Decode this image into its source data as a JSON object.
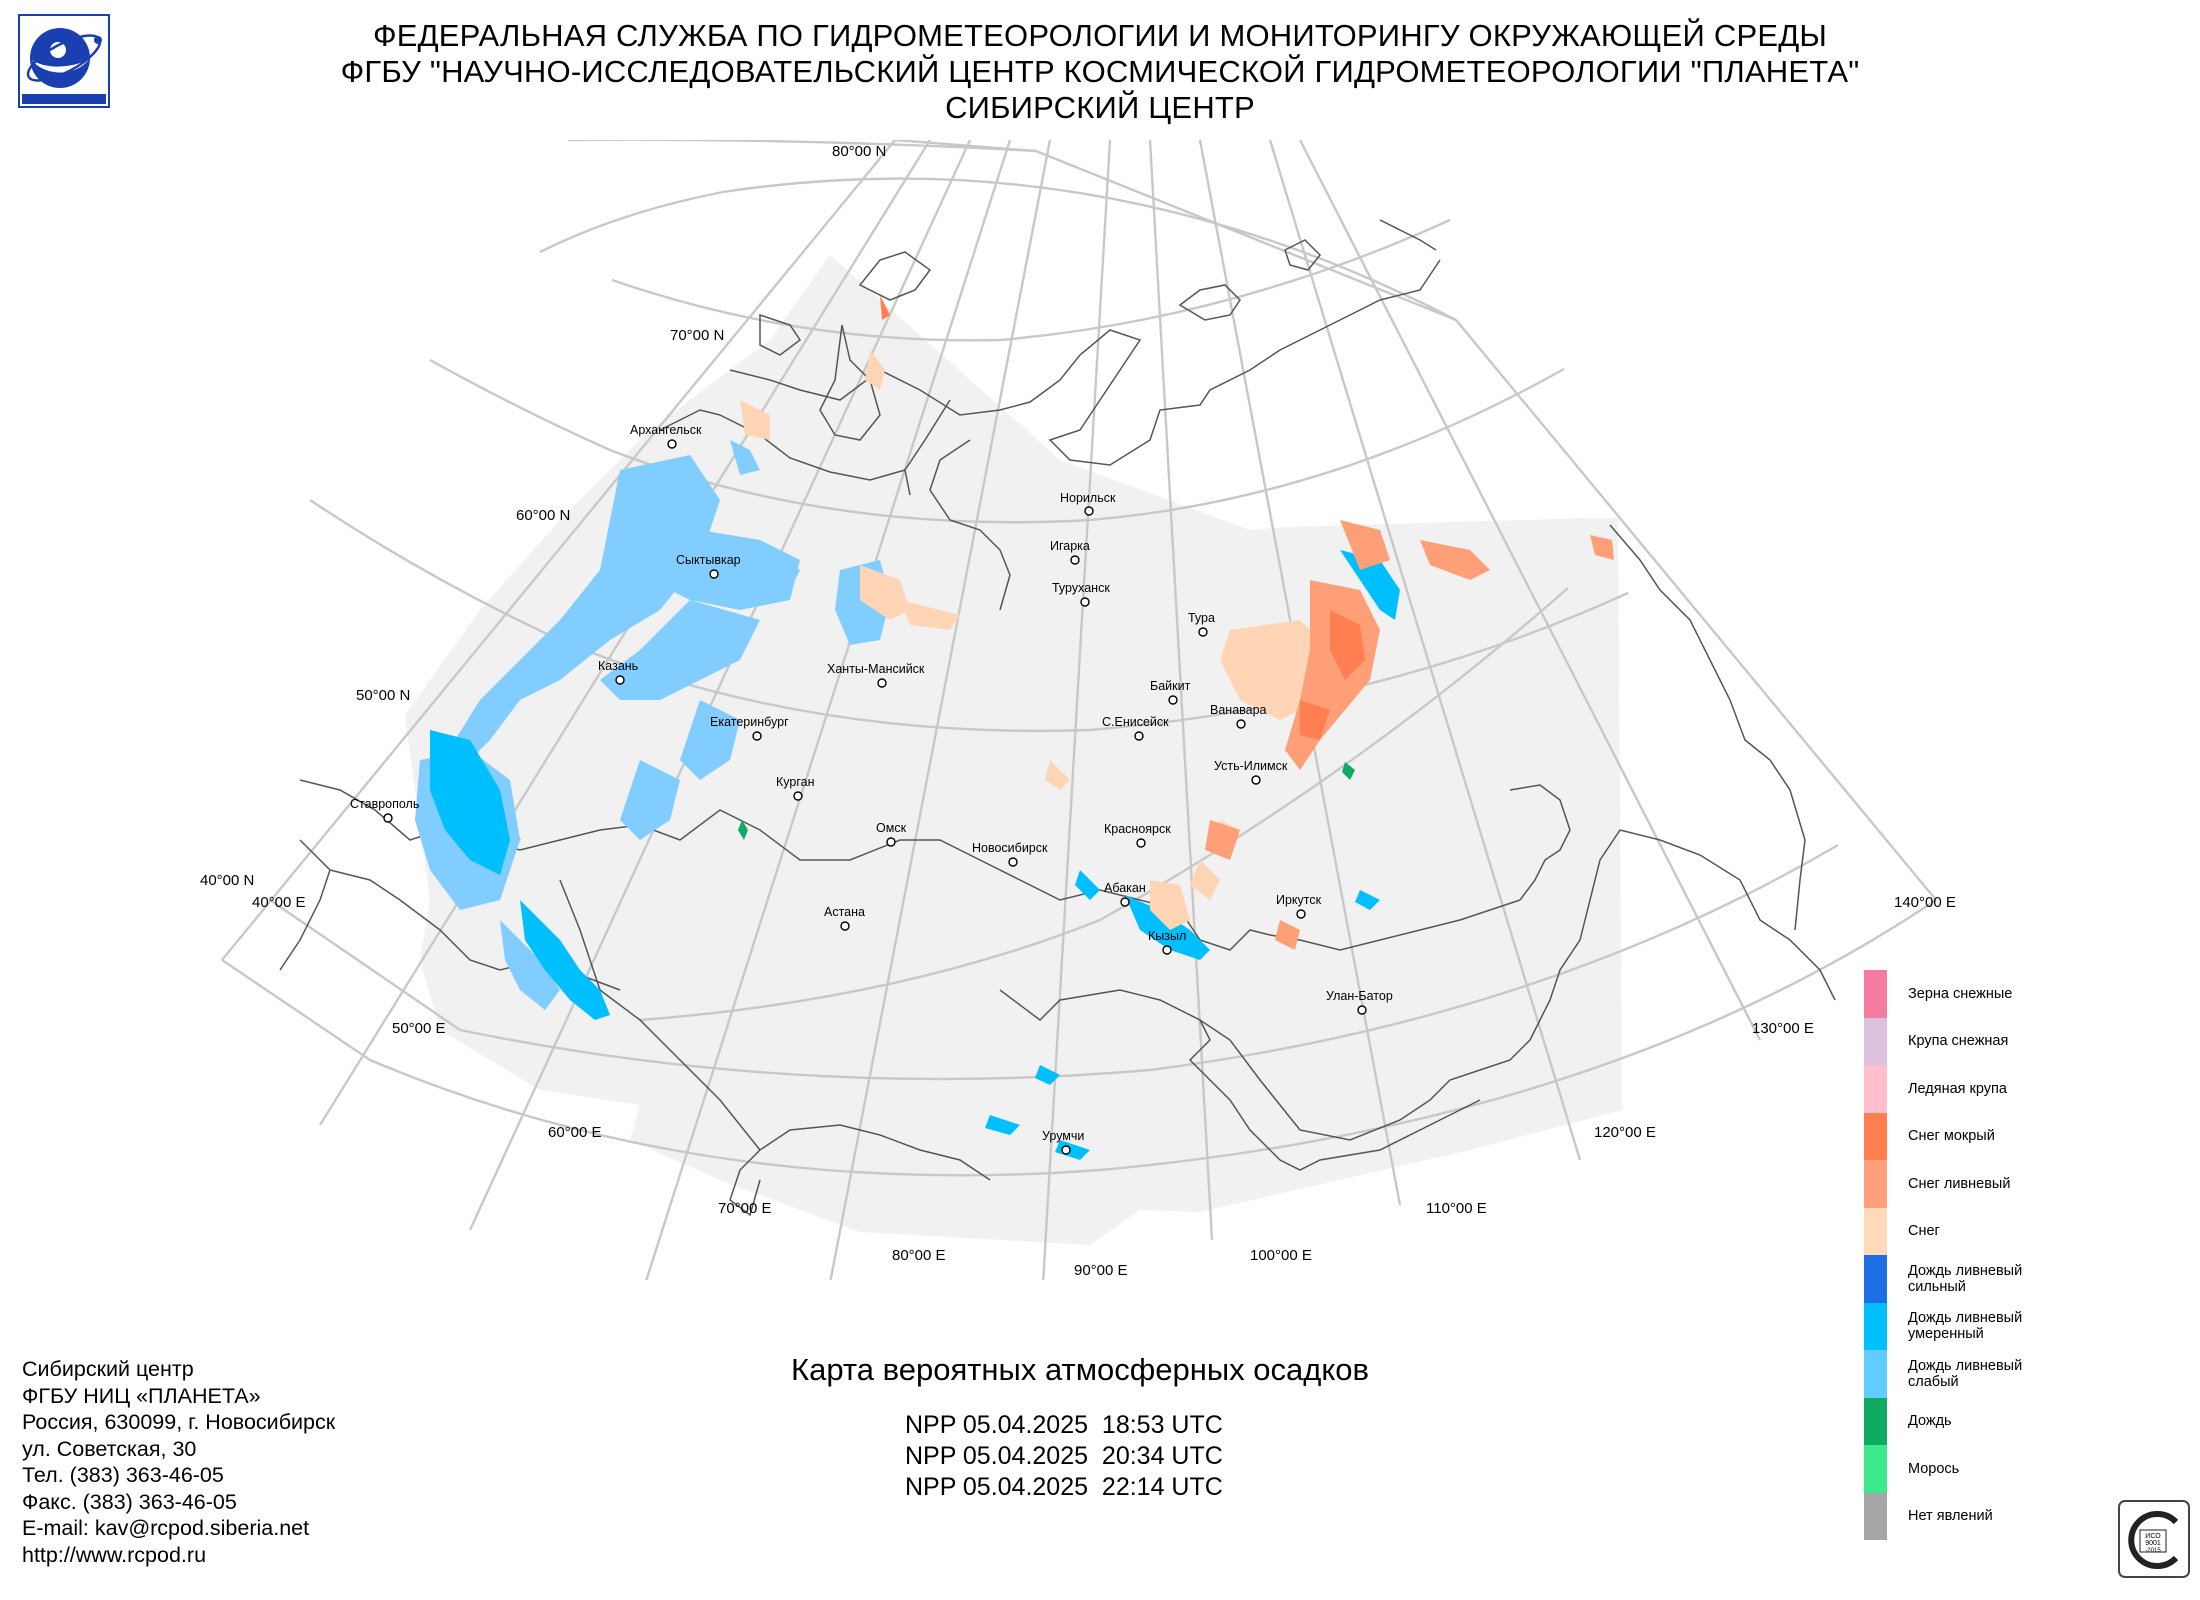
{
  "header": {
    "line1": "ФЕДЕРАЛЬНАЯ СЛУЖБА ПО ГИДРОМЕТЕОРОЛОГИИ И МОНИТОРИНГУ ОКРУЖАЮЩЕЙ СРЕДЫ",
    "line2": "ФГБУ \"НАУЧНО-ИССЛЕДОВАТЕЛЬСКИЙ ЦЕНТР КОСМИЧЕСКОЙ ГИДРОМЕТЕОРОЛОГИИ \"ПЛАНЕТА\"",
    "line3": "СИБИРСКИЙ ЦЕНТР"
  },
  "map": {
    "title": "Карта вероятных атмосферных осадков",
    "passes": [
      "NPP 05.04.2025  18:53 UTC",
      "NPP 05.04.2025  20:34 UTC",
      "NPP 05.04.2025  22:14 UTC"
    ],
    "latitude_labels": [
      "80°00 N",
      "70°00 N",
      "60°00 N",
      "50°00 N",
      "40°00 N"
    ],
    "longitude_labels": [
      "40°00 E",
      "50°00 E",
      "60°00 E",
      "70°00 E",
      "80°00 E",
      "90°00 E",
      "100°00 E",
      "110°00 E",
      "120°00 E",
      "130°00 E",
      "140°00 E"
    ],
    "cities": [
      "Архангельск",
      "Норильск",
      "Игарка",
      "Сыктывкар",
      "Туруханск",
      "Тура",
      "Казань",
      "Ханты-Мансийск",
      "Байкит",
      "Ванавара",
      "Екатеринбург",
      "С.Енисейск",
      "Усть-Илимск",
      "Курган",
      "Ставрополь",
      "Омск",
      "Красноярск",
      "Новосибирск",
      "Абакан",
      "Иркутск",
      "Астана",
      "Кызыл",
      "Улан-Батор",
      "Урумчи"
    ],
    "colors": {
      "land": "#f2f2f2",
      "graticule": "#c8c8c8",
      "coast": "#555555"
    }
  },
  "legend": {
    "items": [
      {
        "label": "Зерна снежные",
        "color": "#f57ba0"
      },
      {
        "label": "Крупа снежная",
        "color": "#dcc1dc"
      },
      {
        "label": "Ледяная крупа",
        "color": "#ffc0cb"
      },
      {
        "label": "Снег мокрый",
        "color": "#ff7f50"
      },
      {
        "label": "Снег ливневый",
        "color": "#ffa07a"
      },
      {
        "label": "Снег",
        "color": "#ffdab9"
      },
      {
        "label": "Дождь ливневый\nсильный",
        "color": "#1e6fe6"
      },
      {
        "label": "Дождь ливневый\nумеренный",
        "color": "#00bfff"
      },
      {
        "label": "Дождь ливневый\nслабый",
        "color": "#61cdff"
      },
      {
        "label": "Дождь",
        "color": "#0fab63"
      },
      {
        "label": "Морось",
        "color": "#3de98c"
      },
      {
        "label": "Нет явлений",
        "color": "#a6a6a6"
      }
    ]
  },
  "contacts": [
    "Сибирский центр",
    "ФГБУ НИЦ «ПЛАНЕТА»",
    "Россия, 630099, г. Новосибирск",
    "ул. Советская, 30",
    "Тел. (383) 363-46-05",
    "Факс. (383) 363-46-05",
    "E-mail: kav@rcpod.siberia.net",
    "http://www.rcpod.ru"
  ],
  "badges": {
    "logo": "planeta-logo-icon",
    "certification": "iso-9001-badge-icon"
  }
}
